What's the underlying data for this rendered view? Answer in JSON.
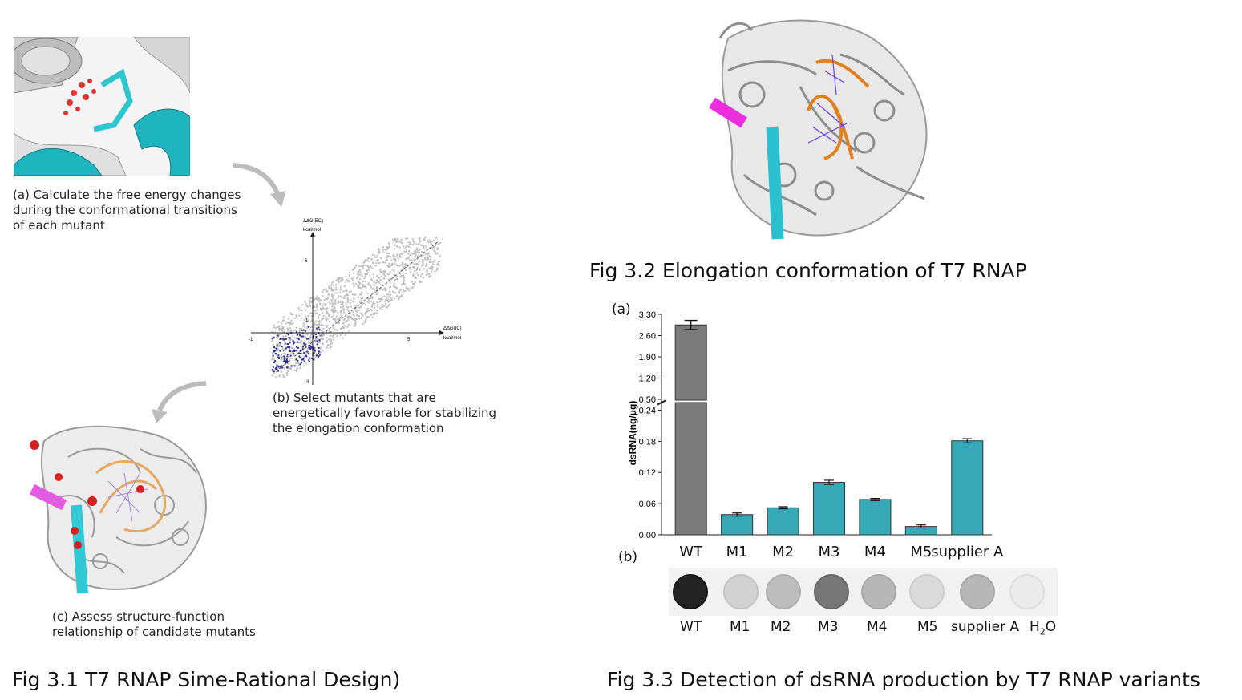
{
  "fig31": {
    "title": "Fig 3.1 T7 RNAP Sime-Rational Design)",
    "caption_a": "(a) Calculate the free energy changes during the conformational transitions of each mutant",
    "caption_b": "(b) Select mutants that are energetically favorable for stabilizing the elongation conformation",
    "caption_c": "(c) Assess structure-function relationship of candidate mutants",
    "scatter": {
      "y_label_1": "ΔΔG(EC)",
      "y_label_2": "kcal/mol",
      "x_label_1": "ΔΔG(IC)",
      "x_label_2": "kcal/mol",
      "tick_x_neg": "-1",
      "tick_x_pos": "5",
      "tick_y_pos": "6",
      "tick_y_neg": "4",
      "tick_center": "1"
    }
  },
  "fig32": {
    "title": "Fig 3.2 Elongation conformation of T7 RNAP"
  },
  "fig33": {
    "title": "Fig 3.3 Detection of dsRNA production by T7 RNAP variants",
    "panel_a": "(a)",
    "panel_b": "(b)",
    "dot_labels": [
      "WT",
      "M1",
      "M2",
      "M3",
      "M4",
      "M5",
      "supplier A"
    ],
    "h2o_label": "H",
    "h2o_sub": "2",
    "h2o_tail": "O",
    "dot_intensity": [
      0.95,
      0.12,
      0.22,
      0.55,
      0.25,
      0.08,
      0.25,
      0.0
    ]
  },
  "chart_data": {
    "type": "bar",
    "categories": [
      "WT",
      "M1",
      "M2",
      "M3",
      "M4",
      "M5",
      "supplier A"
    ],
    "values": [
      2.95,
      0.039,
      0.052,
      0.101,
      0.068,
      0.016,
      0.181
    ],
    "errors": [
      0.15,
      0.003,
      0.002,
      0.004,
      0.002,
      0.003,
      0.004
    ],
    "ylabel": "dsRNA(ng/μg)",
    "yticks_lower": [
      "0.00",
      "0.06",
      "0.12",
      "0.18",
      "0.24"
    ],
    "yticks_upper": [
      "0.50",
      "1.20",
      "1.90",
      "2.60",
      "3.30"
    ],
    "ylim_lower": [
      0,
      0.25
    ],
    "ylim_upper": [
      0.5,
      3.3
    ],
    "colors": {
      "wt": "#7a7a7a",
      "variant": "#35a9b6"
    }
  }
}
